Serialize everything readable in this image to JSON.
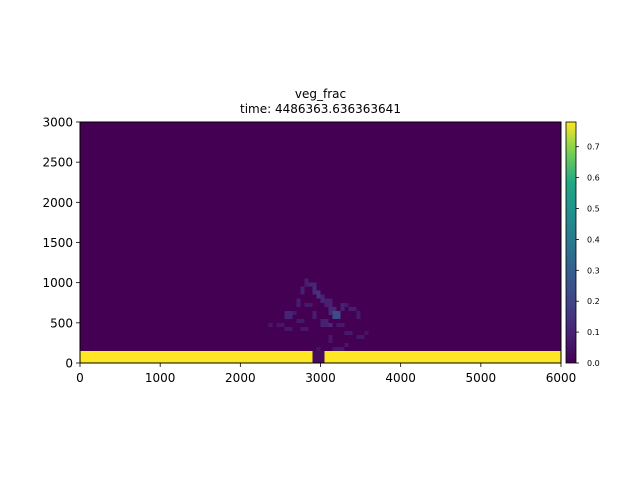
{
  "chart_data": {
    "type": "heatmap",
    "title": "veg_frac",
    "subtitle": "time: 4486363.636363641",
    "xlabel": "",
    "ylabel": "",
    "xlim": [
      0,
      6000
    ],
    "ylim": [
      0,
      3000
    ],
    "x_ticks": [
      "0",
      "1000",
      "2000",
      "3000",
      "4000",
      "5000",
      "6000"
    ],
    "y_ticks": [
      "0",
      "500",
      "1000",
      "1500",
      "2000",
      "2500",
      "3000"
    ],
    "x_tick_values": [
      0,
      1000,
      2000,
      3000,
      4000,
      5000,
      6000
    ],
    "y_tick_values": [
      0,
      500,
      1000,
      1500,
      2000,
      2500,
      3000
    ],
    "colormap": "viridis",
    "background_value": 0.0,
    "grid": false,
    "colorbar": {
      "location": "right",
      "vmin": 0.0,
      "vmax": 0.78,
      "ticks": [
        "0.0",
        "0.1",
        "0.2",
        "0.3",
        "0.4",
        "0.5",
        "0.6",
        "0.7"
      ],
      "tick_values": [
        0.0,
        0.1,
        0.2,
        0.3,
        0.4,
        0.5,
        0.6,
        0.7
      ]
    },
    "cells": [
      {
        "x0": 0,
        "x1": 2900,
        "y0": 0,
        "y1": 150,
        "value": 0.78
      },
      {
        "x0": 3050,
        "x1": 6000,
        "y0": 0,
        "y1": 150,
        "value": 0.78
      },
      {
        "x0": 2900,
        "x1": 3050,
        "y0": 0,
        "y1": 150,
        "value": 0.03
      },
      {
        "x0": 2800,
        "x1": 2850,
        "y0": 950,
        "y1": 1050,
        "value": 0.08
      },
      {
        "x0": 2850,
        "x1": 2950,
        "y0": 950,
        "y1": 1000,
        "value": 0.1
      },
      {
        "x0": 2750,
        "x1": 2800,
        "y0": 850,
        "y1": 950,
        "value": 0.09
      },
      {
        "x0": 2900,
        "x1": 2950,
        "y0": 850,
        "y1": 950,
        "value": 0.12
      },
      {
        "x0": 2950,
        "x1": 3000,
        "y0": 800,
        "y1": 900,
        "value": 0.14
      },
      {
        "x0": 3000,
        "x1": 3050,
        "y0": 750,
        "y1": 850,
        "value": 0.1
      },
      {
        "x0": 2700,
        "x1": 2750,
        "y0": 700,
        "y1": 800,
        "value": 0.08
      },
      {
        "x0": 2800,
        "x1": 2900,
        "y0": 700,
        "y1": 750,
        "value": 0.07
      },
      {
        "x0": 3050,
        "x1": 3150,
        "y0": 700,
        "y1": 800,
        "value": 0.09
      },
      {
        "x0": 3100,
        "x1": 3200,
        "y0": 600,
        "y1": 700,
        "value": 0.11
      },
      {
        "x0": 3150,
        "x1": 3250,
        "y0": 550,
        "y1": 650,
        "value": 0.22
      },
      {
        "x0": 3250,
        "x1": 3300,
        "y0": 650,
        "y1": 750,
        "value": 0.09
      },
      {
        "x0": 3300,
        "x1": 3350,
        "y0": 700,
        "y1": 750,
        "value": 0.07
      },
      {
        "x0": 3350,
        "x1": 3450,
        "y0": 650,
        "y1": 700,
        "value": 0.08
      },
      {
        "x0": 3450,
        "x1": 3500,
        "y0": 550,
        "y1": 650,
        "value": 0.07
      },
      {
        "x0": 2550,
        "x1": 2650,
        "y0": 550,
        "y1": 650,
        "value": 0.1
      },
      {
        "x0": 2650,
        "x1": 2700,
        "y0": 600,
        "y1": 650,
        "value": 0.07
      },
      {
        "x0": 2700,
        "x1": 2800,
        "y0": 500,
        "y1": 550,
        "value": 0.07
      },
      {
        "x0": 2900,
        "x1": 2950,
        "y0": 550,
        "y1": 650,
        "value": 0.08
      },
      {
        "x0": 3000,
        "x1": 3100,
        "y0": 450,
        "y1": 550,
        "value": 0.09
      },
      {
        "x0": 3100,
        "x1": 3150,
        "y0": 450,
        "y1": 500,
        "value": 0.12
      },
      {
        "x0": 3200,
        "x1": 3300,
        "y0": 450,
        "y1": 500,
        "value": 0.07
      },
      {
        "x0": 2350,
        "x1": 2400,
        "y0": 450,
        "y1": 500,
        "value": 0.06
      },
      {
        "x0": 2450,
        "x1": 2550,
        "y0": 450,
        "y1": 500,
        "value": 0.06
      },
      {
        "x0": 2550,
        "x1": 2650,
        "y0": 400,
        "y1": 450,
        "value": 0.06
      },
      {
        "x0": 2750,
        "x1": 2850,
        "y0": 400,
        "y1": 450,
        "value": 0.06
      },
      {
        "x0": 3300,
        "x1": 3400,
        "y0": 350,
        "y1": 400,
        "value": 0.07
      },
      {
        "x0": 3450,
        "x1": 3550,
        "y0": 300,
        "y1": 350,
        "value": 0.06
      },
      {
        "x0": 3550,
        "x1": 3600,
        "y0": 350,
        "y1": 400,
        "value": 0.05
      },
      {
        "x0": 3100,
        "x1": 3150,
        "y0": 250,
        "y1": 350,
        "value": 0.06
      },
      {
        "x0": 3300,
        "x1": 3350,
        "y0": 200,
        "y1": 250,
        "value": 0.06
      },
      {
        "x0": 3150,
        "x1": 3300,
        "y0": 150,
        "y1": 200,
        "value": 0.06
      },
      {
        "x0": 2950,
        "x1": 3000,
        "y0": 150,
        "y1": 200,
        "value": 0.05
      }
    ]
  }
}
